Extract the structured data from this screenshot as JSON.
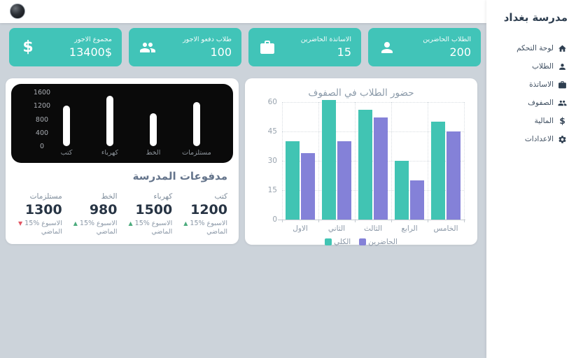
{
  "app": {
    "title": "مدرسة بغداد"
  },
  "sidebar": {
    "items": [
      {
        "label": "لوحة التحكم",
        "icon": "home-icon"
      },
      {
        "label": "الطلاب",
        "icon": "student-icon"
      },
      {
        "label": "الاساتذة",
        "icon": "briefcase-icon"
      },
      {
        "label": "الصفوف",
        "icon": "users-icon"
      },
      {
        "label": "المالية",
        "icon": "dollar-icon"
      },
      {
        "label": "الاعدادات",
        "icon": "gear-icon"
      }
    ]
  },
  "stat_cards": [
    {
      "label": "الطلاب الحاضرين",
      "value": "200",
      "icon": "user-icon"
    },
    {
      "label": "الاساتذة الحاضرين",
      "value": "15",
      "icon": "briefcase-icon"
    },
    {
      "label": "طلاب دفعو الاجور",
      "value": "100",
      "icon": "users-icon"
    },
    {
      "label": "مجموع الاجور",
      "value": "13400$",
      "icon": "dollar-icon"
    }
  ],
  "payments": {
    "title": "مدفوعات المدرسة",
    "items": [
      {
        "label": "كتب",
        "value": "1200",
        "pct": "15%",
        "week": "الاسبوع",
        "last": "الماضي",
        "trend": "up",
        "trend_glyph": "▲"
      },
      {
        "label": "كهرباء",
        "value": "1500",
        "pct": "15%",
        "week": "الاسبوع",
        "last": "الماضي",
        "trend": "up",
        "trend_glyph": "▲"
      },
      {
        "label": "الخط",
        "value": "980",
        "pct": "15%",
        "week": "الاسبوع",
        "last": "الماضي",
        "trend": "up",
        "trend_glyph": "▲"
      },
      {
        "label": "مستلزمات",
        "value": "1300",
        "pct": "15%",
        "week": "الاسبوع",
        "last": "الماضي",
        "trend": "down",
        "trend_glyph": "▼"
      }
    ]
  },
  "colors": {
    "teal_card": "#41c4b8",
    "teal_bar": "#41c4b3",
    "purple_bar": "#8481d8",
    "up_green": "#4cab7d",
    "down_red": "#e25563",
    "dark_card": "#0a0a0a",
    "background": "#ccd3da"
  },
  "chart_data": [
    {
      "type": "bar",
      "title": "",
      "categories": [
        "كتب",
        "كهرباء",
        "الخط",
        "مستلزمات"
      ],
      "values": [
        1200,
        1500,
        980,
        1300
      ],
      "ylim": [
        0,
        1600
      ],
      "yticks": [
        0,
        400,
        800,
        1200,
        1600
      ],
      "bar_color": "#ffffff",
      "background": "#0a0a0a",
      "grid": "off",
      "note": "white pill bars on black card, categories left-to-right"
    },
    {
      "type": "bar",
      "title": "حضور الطلاب في الصفوف",
      "categories": [
        "الاول",
        "الثاني",
        "الثالث",
        "الرابع",
        "الخامس"
      ],
      "series": [
        {
          "name": "الكلي",
          "color": "#41c4b3",
          "values": [
            40,
            61,
            56,
            30,
            50
          ]
        },
        {
          "name": "الحاضرين",
          "color": "#8481d8",
          "values": [
            34,
            40,
            52,
            20,
            45
          ]
        }
      ],
      "ylim": [
        0,
        60
      ],
      "yticks": [
        0,
        15,
        30,
        45,
        60
      ],
      "grid": "dotted",
      "legend_position": "bottom"
    }
  ]
}
